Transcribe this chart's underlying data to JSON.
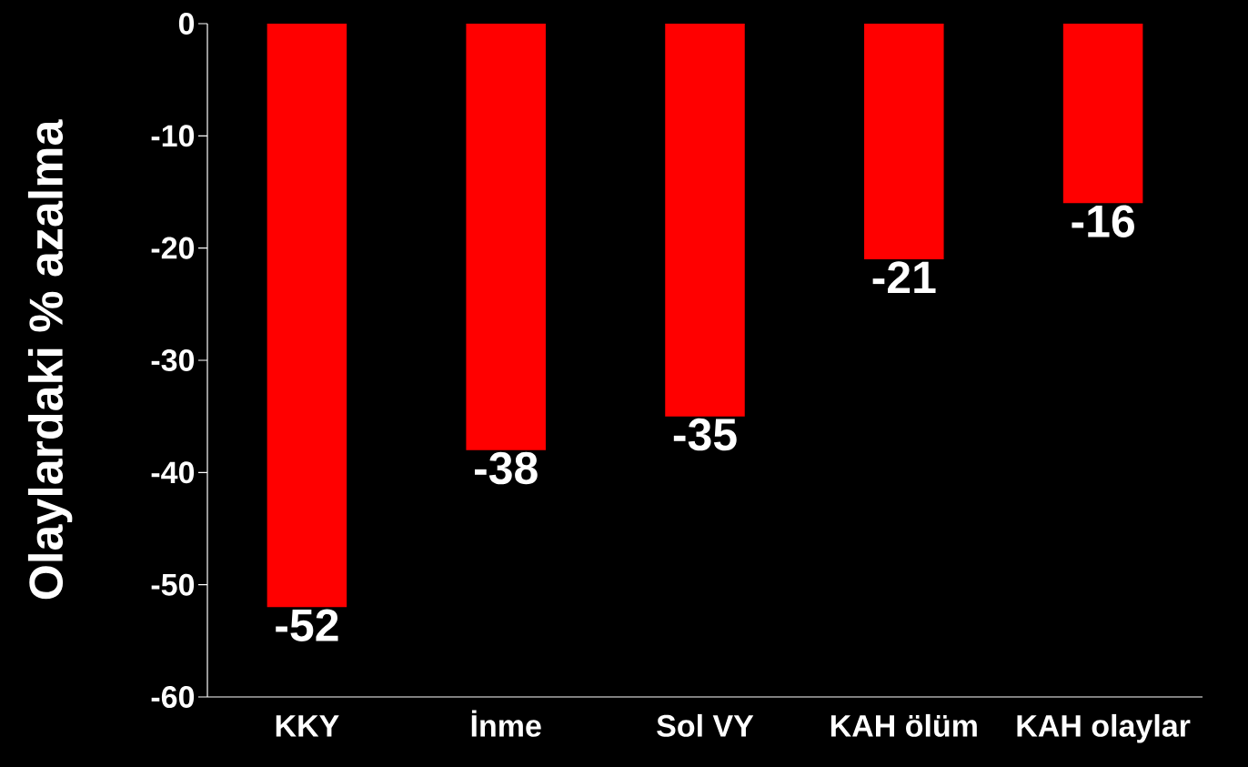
{
  "chart_data": {
    "type": "bar",
    "ylabel": "Olaylardaki % azalma",
    "categories": [
      "KKY",
      "İnme",
      "Sol VY",
      "KAH ölüm",
      "KAH olaylar"
    ],
    "values": [
      -52,
      -38,
      -35,
      -21,
      -16
    ],
    "color": "#ff0000",
    "ylim": [
      -60,
      0
    ],
    "yticks": [
      -60,
      -50,
      -40,
      -30,
      -20,
      -10,
      0
    ],
    "data_labels": true
  }
}
